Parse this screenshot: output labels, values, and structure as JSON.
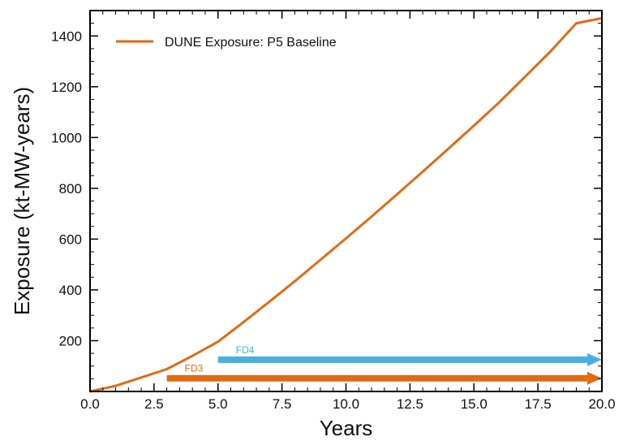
{
  "chart_data": {
    "type": "line",
    "title": "",
    "xlabel": "Years",
    "ylabel": "Exposure (kt-MW-years)",
    "xlim": [
      0,
      20
    ],
    "ylim": [
      0,
      1500
    ],
    "xticks": [
      0.0,
      2.5,
      5.0,
      7.5,
      10.0,
      12.5,
      15.0,
      17.5,
      20.0
    ],
    "xtick_labels": [
      "0.0",
      "2.5",
      "5.0",
      "7.5",
      "10.0",
      "12.5",
      "15.0",
      "17.5",
      "20.0"
    ],
    "yticks": [
      200,
      400,
      600,
      800,
      1000,
      1200,
      1400
    ],
    "ytick_labels": [
      "200",
      "400",
      "600",
      "800",
      "1000",
      "1200",
      "1400"
    ],
    "grid": false,
    "legend_position": "top-left",
    "series": [
      {
        "name": "DUNE Exposure: P5 Baseline",
        "color": "#e06b12",
        "x": [
          0,
          1,
          2,
          3,
          4,
          5,
          6,
          7,
          8,
          9,
          10,
          11,
          12,
          13,
          14,
          15,
          16,
          17,
          18,
          19,
          20
        ],
        "y": [
          0,
          22,
          55,
          88,
          140,
          196,
          273,
          353,
          434,
          518,
          603,
          689,
          777,
          866,
          956,
          1047,
          1140,
          1240,
          1340,
          1450,
          1470
        ]
      }
    ],
    "annotations": [
      {
        "label": "FD4",
        "x_start": 5.0,
        "x_end": 20.0,
        "y": 125,
        "color": "#4aaee3"
      },
      {
        "label": "FD3",
        "x_start": 3.0,
        "x_end": 20.0,
        "y": 52,
        "color": "#e06b12"
      }
    ]
  }
}
